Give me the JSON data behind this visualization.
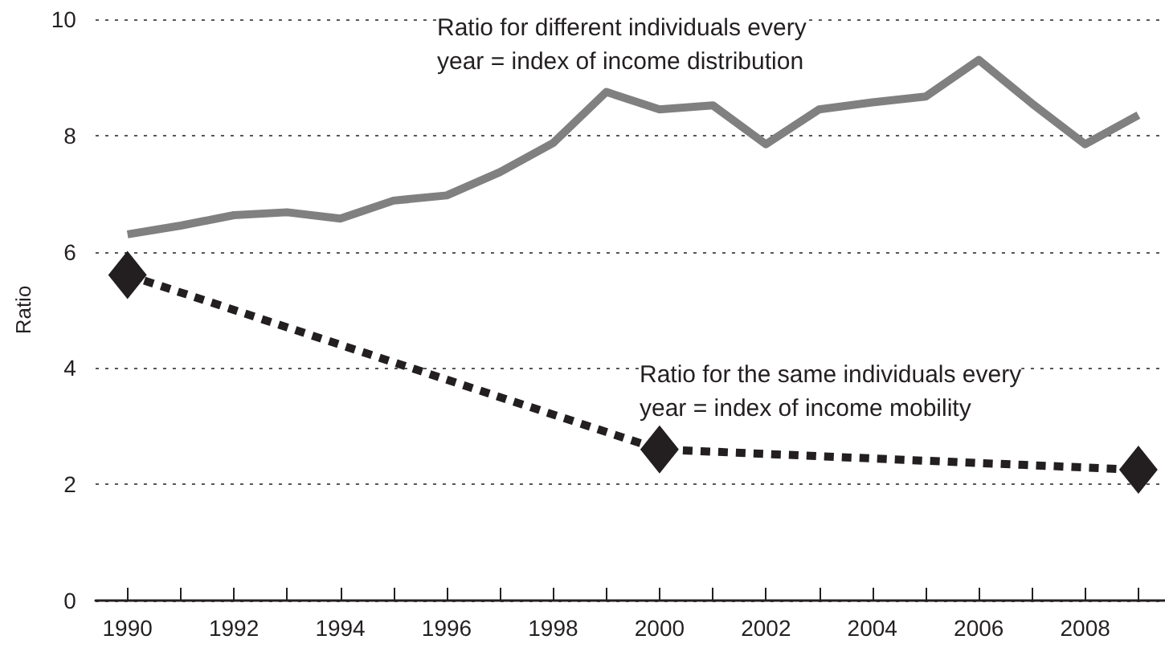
{
  "chart_data": {
    "type": "line",
    "ylabel": "Ratio",
    "xlim": [
      1989.4,
      2009.5
    ],
    "xticks": [
      1990,
      {
        "value": 1991,
        "label": null
      },
      1992,
      {
        "value": 1993,
        "label": null
      },
      1994,
      {
        "value": 1995,
        "label": null
      },
      1996,
      {
        "value": 1997,
        "label": null
      },
      1998,
      {
        "value": 1999,
        "label": null
      },
      2000,
      {
        "value": 2001,
        "label": null
      },
      2002,
      {
        "value": 2003,
        "label": null
      },
      2004,
      {
        "value": 2005,
        "label": null
      },
      2006,
      {
        "value": 2007,
        "label": null
      },
      2008,
      {
        "value": 2009,
        "label": null
      }
    ],
    "ylim": [
      0,
      10
    ],
    "yticks": [
      0,
      2,
      4,
      6,
      8,
      10
    ],
    "grid": "y",
    "series": [
      {
        "color": "#808080",
        "line_style": "solid",
        "marker": "none",
        "x": [
          1990,
          1991,
          1992,
          1993,
          1994,
          1995,
          1996,
          1997,
          1998,
          1999,
          2000,
          2001,
          2002,
          2003,
          2004,
          2005,
          2006,
          2007,
          2008,
          2009
        ],
        "values": [
          6.3,
          6.45,
          6.63,
          6.68,
          6.57,
          6.88,
          6.97,
          7.37,
          7.87,
          8.75,
          8.45,
          8.52,
          7.85,
          8.45,
          8.57,
          8.67,
          9.3,
          8.55,
          7.85,
          8.35
        ]
      },
      {
        "color": "#231f20",
        "line_style": "dashed",
        "marker": "diamond",
        "x": [
          1990,
          2000,
          2009
        ],
        "values": [
          5.6,
          2.6,
          2.25
        ]
      }
    ],
    "annotations": [
      "Ratio for different individuals every\nyear = index of income distribution",
      "Ratio for the same individuals every\nyear = index of income mobility"
    ]
  }
}
